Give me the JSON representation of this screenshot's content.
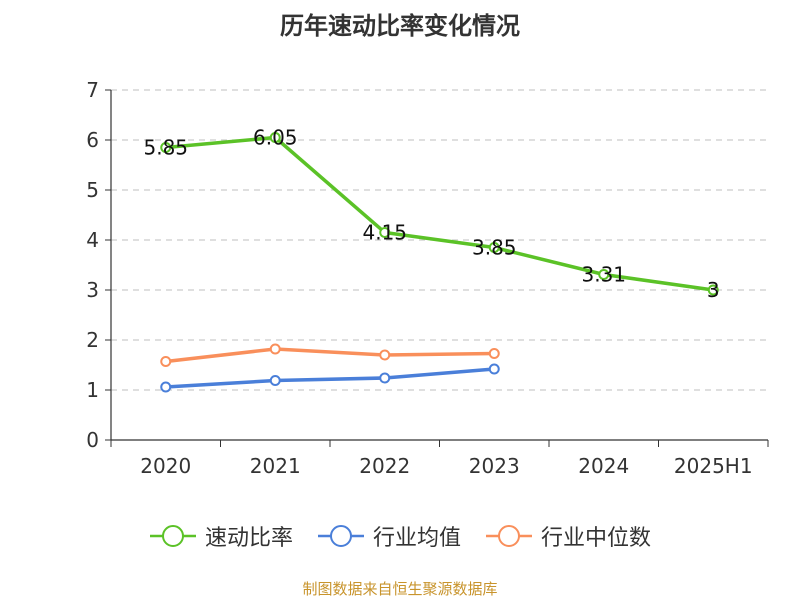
{
  "chart_data": {
    "type": "line",
    "title": "历年速动比率变化情况",
    "categories": [
      "2020",
      "2021",
      "2022",
      "2023",
      "2024",
      "2025H1"
    ],
    "ylim": [
      0,
      7
    ],
    "yticks": [
      0,
      1,
      2,
      3,
      4,
      5,
      6,
      7
    ],
    "grid": true,
    "legend_position": "bottom",
    "series": [
      {
        "name": "速动比率",
        "color": "#5bc227",
        "values": [
          5.85,
          6.05,
          4.15,
          3.85,
          3.31,
          3
        ],
        "labels": [
          "5.85",
          "6.05",
          "4.15",
          "3.85",
          "3.31",
          "3"
        ]
      },
      {
        "name": "行业均值",
        "color": "#4a7fd9",
        "values": [
          1.06,
          1.19,
          1.24,
          1.42,
          null,
          null
        ]
      },
      {
        "name": "行业中位数",
        "color": "#f98f5b",
        "values": [
          1.57,
          1.82,
          1.7,
          1.73,
          null,
          null
        ]
      }
    ]
  },
  "footer": {
    "source": "制图数据来自恒生聚源数据库"
  }
}
